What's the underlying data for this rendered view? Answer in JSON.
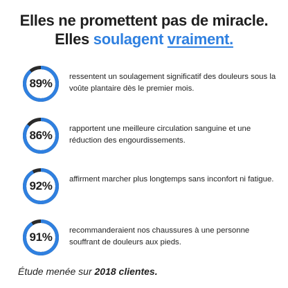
{
  "headline": {
    "line1": "Elles ne promettent pas de miracle.",
    "line2_prefix": "Elles ",
    "line2_accent": "soulagent",
    "line2_space": " ",
    "line2_underlined": "vraiment."
  },
  "colors": {
    "accent": "#2f80e0",
    "track": "#2a2a2a"
  },
  "stats": [
    {
      "value": 89,
      "label": "89%",
      "text": "ressentent un soulagement significatif des douleurs sous la voûte plantaire dès le premier mois."
    },
    {
      "value": 86,
      "label": "86%",
      "text": "rapportent une meilleure circulation sanguine et une réduction des engourdissements."
    },
    {
      "value": 92,
      "label": "92%",
      "text": "affirment marcher plus longtemps sans inconfort ni fatigue."
    },
    {
      "value": 91,
      "label": "91%",
      "text": "recommanderaient nos chaussures à une personne souffrant de douleurs aux pieds."
    }
  ],
  "footer": {
    "prefix": "Étude menée sur ",
    "bold": "2018 clientes."
  }
}
